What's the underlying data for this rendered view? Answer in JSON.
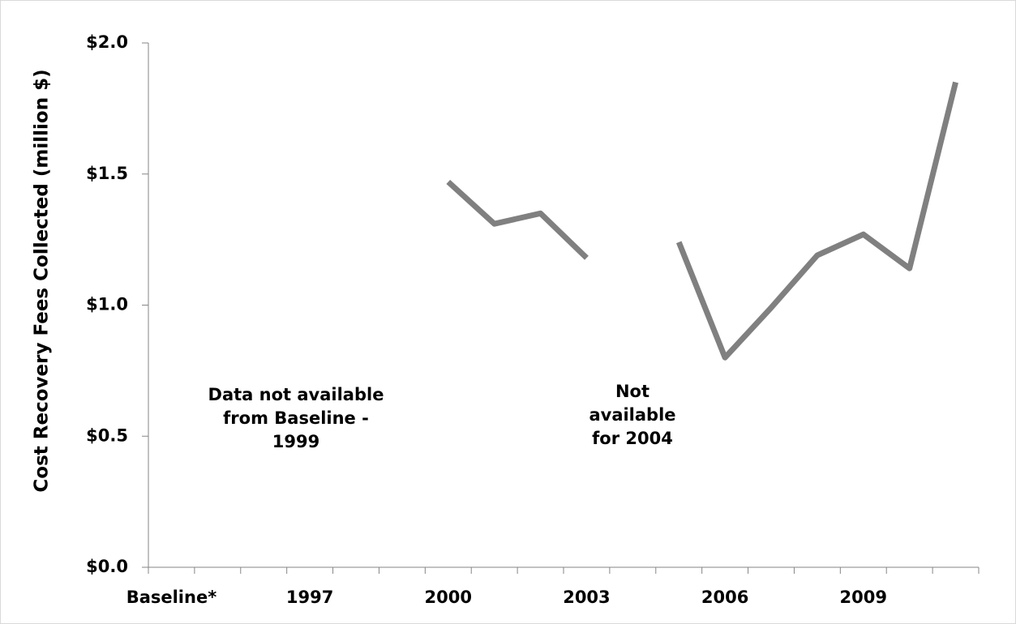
{
  "chart_data": {
    "type": "line",
    "y_label": "Cost Recovery Fees Collected (million $)",
    "categories": [
      "Baseline*",
      null,
      null,
      "1997",
      null,
      null,
      "2000",
      null,
      null,
      "2003",
      null,
      null,
      "2006",
      null,
      null,
      "2009",
      null,
      null
    ],
    "series": [
      {
        "color": "#808080",
        "values": [
          null,
          null,
          null,
          null,
          null,
          null,
          1.47,
          1.31,
          1.35,
          1.18,
          null,
          1.24,
          0.8,
          0.99,
          1.19,
          1.27,
          1.14,
          1.85
        ]
      }
    ],
    "ylim": [
      0,
      2
    ],
    "yticks": [
      {
        "value": 0,
        "label": "$0.0"
      },
      {
        "value": 0.5,
        "label": "$0.5"
      },
      {
        "value": 1,
        "label": "$1.0"
      },
      {
        "value": 1.5,
        "label": "$1.5"
      },
      {
        "value": 2,
        "label": "$2.0"
      }
    ],
    "grid": false,
    "annotations": [
      {
        "lines": [
          "Data not available",
          "from Baseline -",
          "1999"
        ]
      },
      {
        "lines": [
          "Not",
          "available",
          "for 2004"
        ]
      }
    ]
  }
}
